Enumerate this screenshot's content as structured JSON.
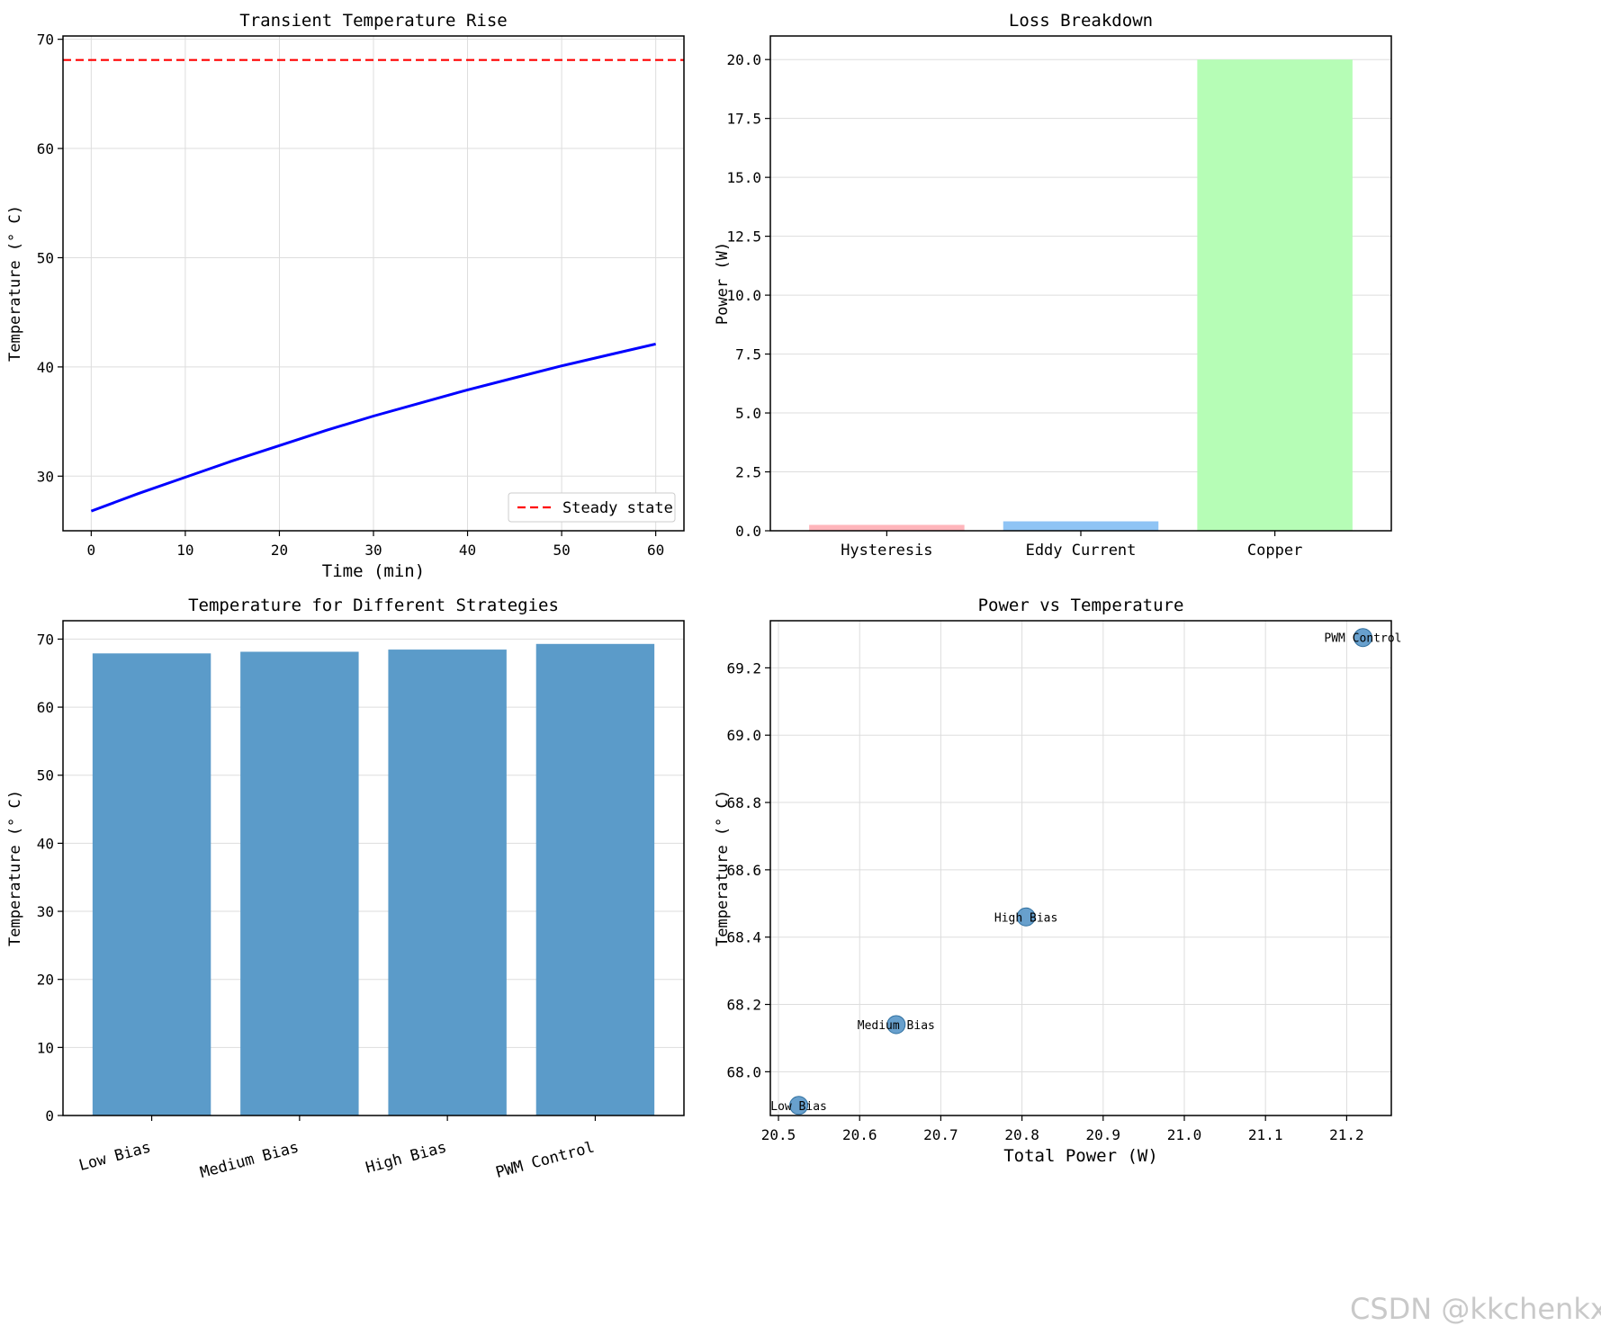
{
  "watermark": "CSDN @kkchenkx",
  "colors": {
    "grid": "#dddddd",
    "axis": "#000000",
    "transient_line": "#0000ff",
    "steady_line": "#ff0000",
    "strategy_bar": "#5b9bc9",
    "scatter_point": "#4d8fc4"
  },
  "chart_data": [
    {
      "id": "transient",
      "type": "line",
      "title": "Transient Temperature Rise",
      "xlabel": "Time (min)",
      "ylabel": "Temperature (° C)",
      "xlim": [
        -3,
        63
      ],
      "ylim": [
        25,
        70.3
      ],
      "xticks": [
        0,
        10,
        20,
        30,
        40,
        50,
        60
      ],
      "yticks": [
        30,
        40,
        50,
        60,
        70
      ],
      "grid": true,
      "series": [
        {
          "name": "Transient",
          "color": "#0000ff",
          "x": [
            0,
            5,
            10,
            15,
            20,
            25,
            30,
            35,
            40,
            45,
            50,
            55,
            60
          ],
          "y": [
            26.8,
            28.4,
            29.9,
            31.4,
            32.8,
            34.2,
            35.5,
            36.7,
            37.9,
            39.0,
            40.1,
            41.1,
            42.1
          ]
        }
      ],
      "hlines": [
        {
          "name": "Steady state",
          "y": 68.1,
          "color": "#ff0000",
          "style": "dashed"
        }
      ],
      "legend": {
        "position": "lower-right",
        "entries": [
          "Steady state"
        ]
      }
    },
    {
      "id": "loss",
      "type": "bar",
      "title": "Loss Breakdown",
      "xlabel": "",
      "ylabel": "Power (W)",
      "ylim": [
        0,
        21
      ],
      "yticks": [
        0,
        2.5,
        5,
        7.5,
        10,
        12.5,
        15,
        17.5,
        20
      ],
      "ytick_labels": [
        "0.0",
        "2.5",
        "5.0",
        "7.5",
        "10.0",
        "12.5",
        "15.0",
        "17.5",
        "20.0"
      ],
      "grid": "y",
      "categories": [
        "Hysteresis",
        "Eddy Current",
        "Copper"
      ],
      "values": [
        0.25,
        0.4,
        20.0
      ],
      "bar_colors": [
        "#ffb5bb",
        "#8fc4f5",
        "#b6fdb6"
      ]
    },
    {
      "id": "strategies",
      "type": "bar",
      "title": "Temperature for Different Strategies",
      "xlabel": "",
      "ylabel": "Temperature (° C)",
      "ylim": [
        0,
        72.7
      ],
      "yticks": [
        0,
        10,
        20,
        30,
        40,
        50,
        60,
        70
      ],
      "grid": "y",
      "categories": [
        "Low Bias",
        "Medium Bias",
        "High Bias",
        "PWM Control"
      ],
      "values": [
        67.9,
        68.14,
        68.46,
        69.29
      ],
      "tick_rotation": 15
    },
    {
      "id": "scatter",
      "type": "scatter",
      "title": "Power vs Temperature",
      "xlabel": "Total Power (W)",
      "ylabel": "Temperature (° C)",
      "xlim": [
        20.49,
        21.255
      ],
      "ylim": [
        67.87,
        69.34
      ],
      "xticks": [
        20.5,
        20.6,
        20.7,
        20.8,
        20.9,
        21.0,
        21.1,
        21.2
      ],
      "xtick_labels": [
        "20.5",
        "20.6",
        "20.7",
        "20.8",
        "20.9",
        "21.0",
        "21.1",
        "21.2"
      ],
      "yticks": [
        68.0,
        68.2,
        68.4,
        68.6,
        68.8,
        69.0,
        69.2
      ],
      "ytick_labels": [
        "68.0",
        "68.2",
        "68.4",
        "68.6",
        "68.8",
        "69.0",
        "69.2"
      ],
      "grid": true,
      "points": [
        {
          "label": "Low Bias",
          "x": 20.525,
          "y": 67.9
        },
        {
          "label": "Medium Bias",
          "x": 20.645,
          "y": 68.14
        },
        {
          "label": "High Bias",
          "x": 20.805,
          "y": 68.46
        },
        {
          "label": "PWM Control",
          "x": 21.22,
          "y": 69.29
        }
      ]
    }
  ]
}
